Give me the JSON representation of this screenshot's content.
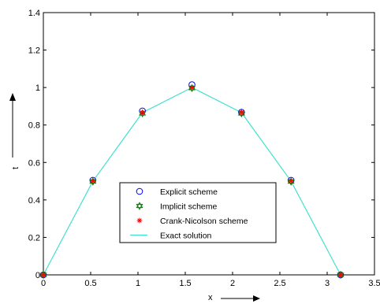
{
  "chart_data": {
    "type": "line",
    "xlabel": "x",
    "ylabel": "t",
    "xlim": [
      0,
      3.5
    ],
    "ylim": [
      0,
      1.4
    ],
    "x_ticks": [
      "0",
      "0.5",
      "1",
      "1.5",
      "2",
      "2.5",
      "3",
      "3.5"
    ],
    "y_ticks": [
      "0",
      "0.2",
      "0.4",
      "0.6",
      "0.8",
      "1",
      "1.2",
      "1.4"
    ],
    "grid": false,
    "legend_position": "lower-center",
    "x": [
      0,
      0.5236,
      1.0472,
      1.5708,
      2.0944,
      2.618,
      3.1416
    ],
    "series": [
      {
        "name": "Explicit scheme",
        "marker": "circle",
        "color": "#0000ff",
        "values": [
          0,
          0.505,
          0.875,
          1.015,
          0.868,
          0.505,
          0
        ]
      },
      {
        "name": "Implicit scheme",
        "marker": "star",
        "color": "#008000",
        "values": [
          0,
          0.498,
          0.862,
          0.997,
          0.862,
          0.498,
          0
        ]
      },
      {
        "name": "Crank-Nicolson scheme",
        "marker": "asterisk",
        "color": "#ff0000",
        "values": [
          0,
          0.5,
          0.866,
          1.0,
          0.866,
          0.5,
          0
        ]
      },
      {
        "name": "Exact solution",
        "marker": "none",
        "color": "#40e0d0",
        "values": [
          0,
          0.5,
          0.866,
          1.0,
          0.866,
          0.5,
          0
        ]
      }
    ]
  }
}
